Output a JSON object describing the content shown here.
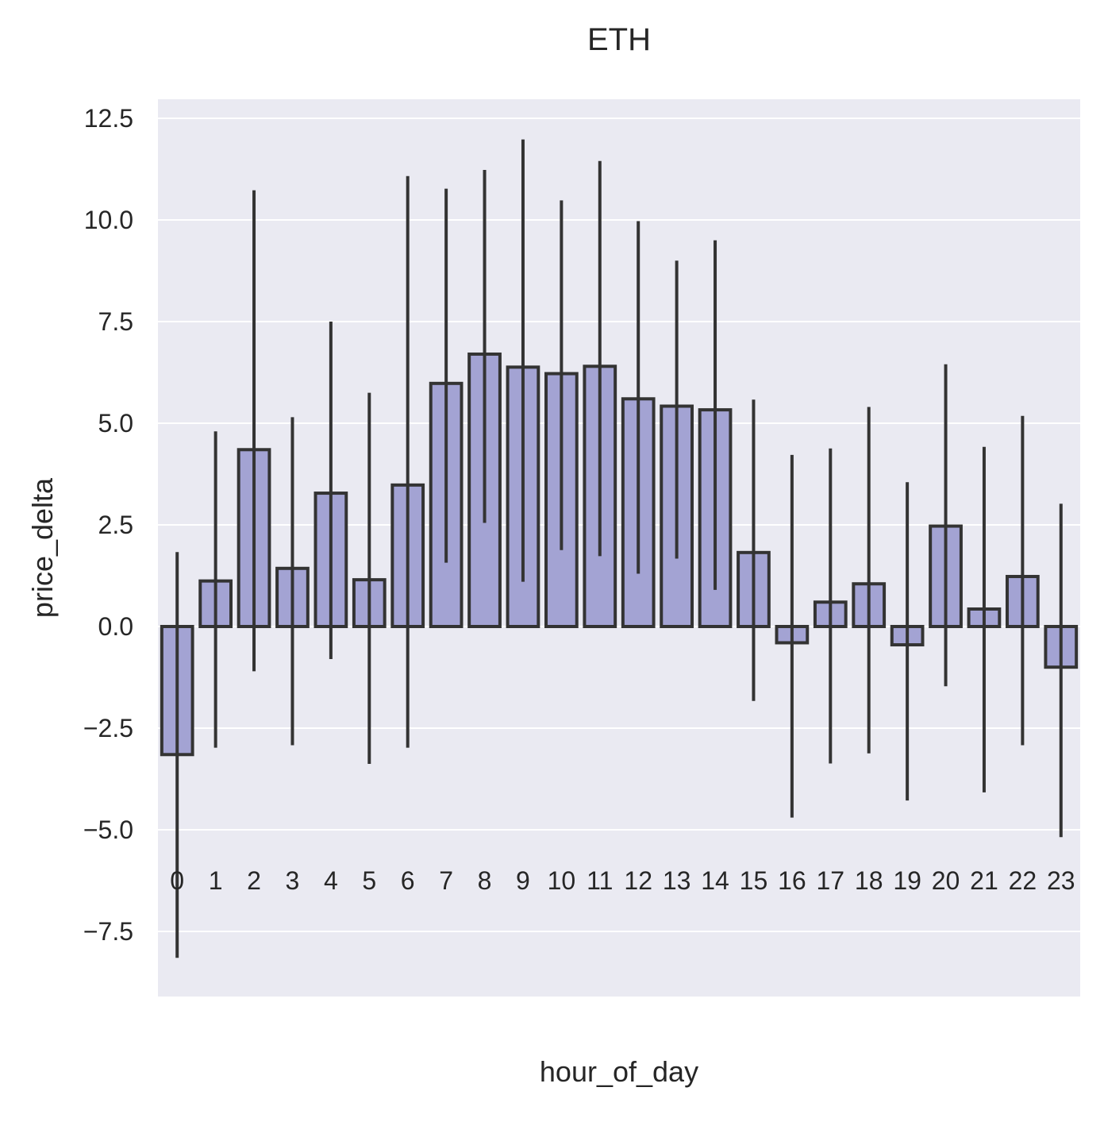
{
  "chart_data": {
    "type": "bar",
    "title": "ETH",
    "xlabel": "hour_of_day",
    "ylabel": "price_delta",
    "ylim": [
      -9.1,
      12.95
    ],
    "yticks": [
      -7.5,
      -5.0,
      -2.5,
      0.0,
      2.5,
      5.0,
      7.5,
      10.0,
      12.5
    ],
    "ytick_labels": [
      "−7.5",
      "−5.0",
      "−2.5",
      "0.0",
      "2.5",
      "5.0",
      "7.5",
      "10.0",
      "12.5"
    ],
    "grid": true,
    "categories": [
      "0",
      "1",
      "2",
      "3",
      "4",
      "5",
      "6",
      "7",
      "8",
      "9",
      "10",
      "11",
      "12",
      "13",
      "14",
      "15",
      "16",
      "17",
      "18",
      "19",
      "20",
      "21",
      "22",
      "23"
    ],
    "values": [
      -3.15,
      1.12,
      4.35,
      1.43,
      3.28,
      1.15,
      3.48,
      5.98,
      6.7,
      6.38,
      6.22,
      6.4,
      5.6,
      5.42,
      5.33,
      1.82,
      -0.4,
      0.6,
      1.05,
      -0.45,
      2.47,
      0.43,
      1.23,
      -1.0
    ],
    "error_low": [
      -8.15,
      -2.98,
      -1.1,
      -2.92,
      -0.8,
      -3.38,
      -2.98,
      1.57,
      2.55,
      1.1,
      1.88,
      1.73,
      1.3,
      1.67,
      0.9,
      -1.83,
      -4.7,
      -3.37,
      -3.12,
      -4.28,
      -1.47,
      -4.08,
      -2.92,
      -5.18
    ],
    "error_high": [
      1.83,
      4.8,
      10.73,
      5.15,
      7.5,
      5.75,
      11.08,
      10.77,
      11.23,
      11.98,
      10.48,
      11.45,
      9.97,
      9.0,
      9.5,
      5.58,
      4.22,
      4.38,
      5.4,
      3.55,
      6.45,
      4.42,
      5.18,
      3.02
    ],
    "colors": {
      "bar_fill": "#a3a3d3",
      "bar_edge": "#333333",
      "error_bar": "#333333",
      "plot_bg": "#eaeaf2",
      "grid": "#ffffff",
      "text": "#262626"
    }
  }
}
